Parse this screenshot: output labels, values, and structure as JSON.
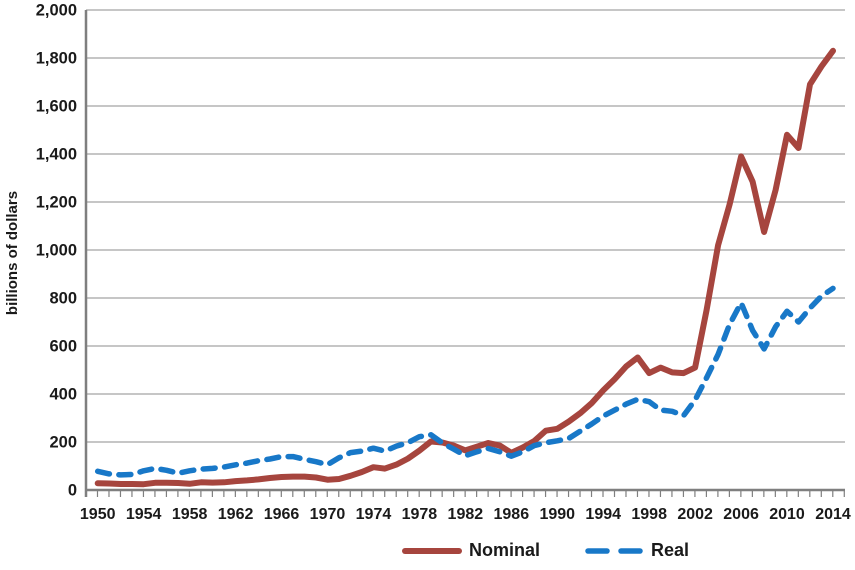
{
  "chart_data": {
    "type": "line",
    "title": "",
    "xlabel": "",
    "ylabel": "billions of dollars",
    "xlim": [
      1950,
      2014
    ],
    "ylim": [
      0,
      2000
    ],
    "grid": "horizontal",
    "legend_position": "bottom-center",
    "x": [
      1950,
      1951,
      1952,
      1953,
      1954,
      1955,
      1956,
      1957,
      1958,
      1959,
      1960,
      1961,
      1962,
      1963,
      1964,
      1965,
      1966,
      1967,
      1968,
      1969,
      1970,
      1971,
      1972,
      1973,
      1974,
      1975,
      1976,
      1977,
      1978,
      1979,
      1980,
      1981,
      1982,
      1983,
      1984,
      1985,
      1986,
      1987,
      1988,
      1989,
      1990,
      1991,
      1992,
      1993,
      1994,
      1995,
      1996,
      1997,
      1998,
      1999,
      2000,
      2001,
      2002,
      2003,
      2004,
      2005,
      2006,
      2007,
      2008,
      2009,
      2010,
      2011,
      2012,
      2013,
      2014
    ],
    "x_tick_labels": [
      "1950",
      "1954",
      "1958",
      "1962",
      "1966",
      "1970",
      "1974",
      "1978",
      "1982",
      "1986",
      "1990",
      "1994",
      "1998",
      "2002",
      "2006",
      "2010",
      "2014"
    ],
    "y_tick_values": [
      0,
      200,
      400,
      600,
      800,
      1000,
      1200,
      1400,
      1600,
      1800,
      2000
    ],
    "y_tick_labels": [
      "0",
      "200",
      "400",
      "600",
      "800",
      "1,000",
      "1,200",
      "1,400",
      "1,600",
      "1,800",
      "2,000"
    ],
    "series": [
      {
        "name": "Nominal",
        "style": "solid",
        "color": "#A6453E",
        "values": [
          28,
          27,
          25,
          25,
          24,
          30,
          30,
          29,
          26,
          32,
          31,
          32,
          37,
          40,
          44,
          50,
          54,
          56,
          56,
          52,
          43,
          46,
          59,
          75,
          95,
          89,
          106,
          131,
          164,
          202,
          198,
          185,
          165,
          180,
          196,
          185,
          155,
          177,
          204,
          247,
          255,
          285,
          320,
          362,
          415,
          462,
          515,
          552,
          487,
          510,
          490,
          487,
          510,
          750,
          1020,
          1190,
          1390,
          1285,
          1075,
          1250,
          1480,
          1425,
          1690,
          1765,
          1830
        ]
      },
      {
        "name": "Real",
        "style": "dashed",
        "color": "#1878C8",
        "values": [
          78,
          67,
          63,
          65,
          80,
          90,
          82,
          70,
          80,
          87,
          90,
          96,
          105,
          112,
          122,
          129,
          139,
          139,
          128,
          118,
          106,
          134,
          156,
          162,
          174,
          162,
          183,
          197,
          222,
          230,
          196,
          170,
          143,
          159,
          173,
          159,
          141,
          159,
          185,
          197,
          205,
          215,
          245,
          275,
          308,
          333,
          358,
          378,
          368,
          333,
          328,
          310,
          375,
          468,
          565,
          690,
          780,
          665,
          588,
          680,
          745,
          700,
          758,
          808,
          840
        ]
      }
    ],
    "colors": {
      "gridline": "#A3A3A3",
      "axis": "#7F7F7F",
      "text": "#1A1A1A"
    }
  }
}
